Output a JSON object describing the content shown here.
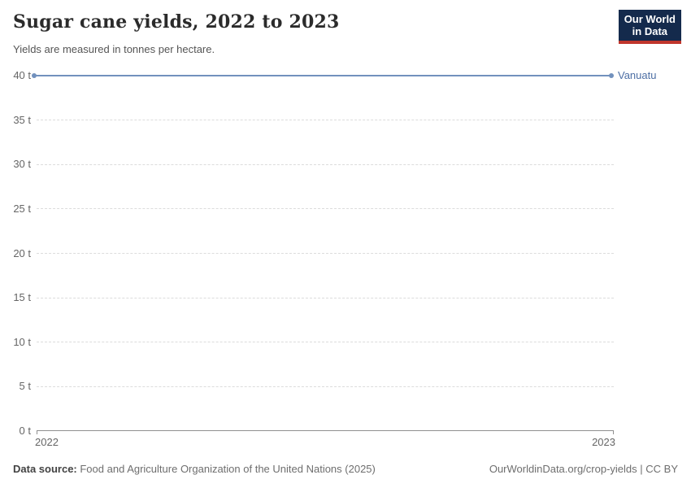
{
  "header": {
    "title": "Sugar cane yields, 2022 to 2023",
    "subtitle": "Yields are measured in tonnes per hectare.",
    "logo": {
      "line1": "Our World",
      "line2": "in Data"
    }
  },
  "footer": {
    "source_label": "Data source:",
    "source_text": " Food and Agriculture Organization of the United Nations (2025)",
    "attribution": "OurWorldinData.org/crop-yields | CC BY"
  },
  "colors": {
    "line_blue": "#7291bd",
    "entity_label_blue": "#4d6fa4",
    "gridline": "#dcdcdc",
    "axis": "#8f8f8f",
    "tick_label": "#666666",
    "logo_navy": "#142a4c",
    "logo_red": "#c0362c"
  },
  "chart_data": {
    "type": "line",
    "title": "Sugar cane yields, 2022 to 2023",
    "subtitle": "Yields are measured in tonnes per hectare.",
    "unit": "tonnes per hectare",
    "x": [
      2022,
      2023
    ],
    "x_tick_labels": [
      "2022",
      "2023"
    ],
    "y_ticks": [
      0,
      5,
      10,
      15,
      20,
      25,
      30,
      35,
      40
    ],
    "y_tick_suffix": " t",
    "ylim": [
      0,
      40
    ],
    "grid": "horizontal-dashed",
    "legend_position": "right-end-of-line",
    "series": [
      {
        "name": "Vanuatu",
        "values": [
          40,
          40
        ],
        "color": "#7291bd",
        "label_color": "#4d6fa4"
      }
    ]
  }
}
